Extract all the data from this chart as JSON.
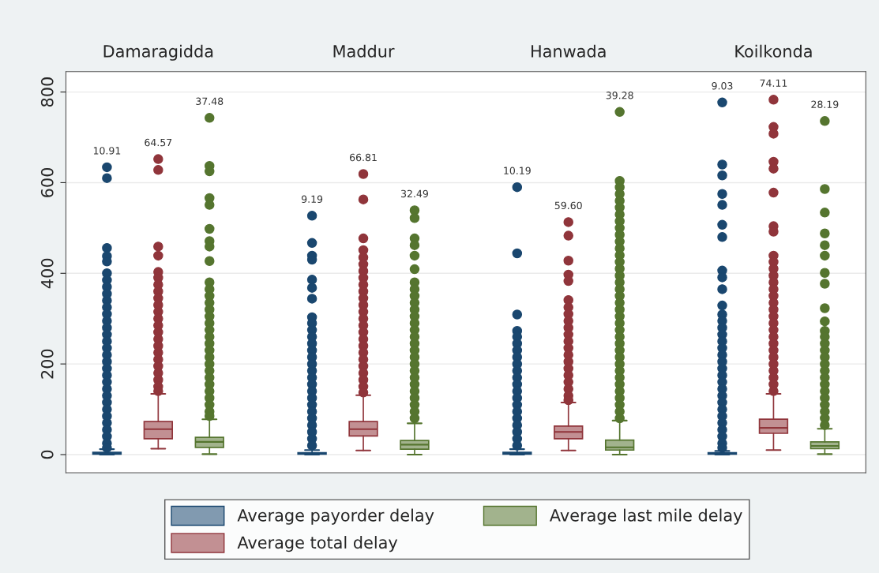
{
  "chart_data": {
    "type": "box",
    "categories": [
      "Damaragidda",
      "Maddur",
      "Hanwada",
      "Koilkonda"
    ],
    "ylim": [
      -40,
      845
    ],
    "yticks": [
      0,
      200,
      400,
      600,
      800
    ],
    "grid": "y",
    "legend": "bottom",
    "annotations": [
      "10.91",
      "64.57",
      "37.48",
      "9.19",
      "66.81",
      "32.49",
      "10.19",
      "59.60",
      "39.28",
      "9.03",
      "74.11",
      "28.19"
    ],
    "series": [
      {
        "name": "Average payorder delay",
        "color": "#1a476f",
        "boxes": [
          {
            "low": 0,
            "q1": 1,
            "median": 2,
            "q3": 5,
            "high": 12,
            "outliers": [
              634,
              610,
              456,
              438,
              426,
              400,
              385,
              370,
              355,
              340,
              325,
              310,
              295,
              280,
              265,
              250,
              235,
              220,
              205,
              190,
              175,
              160,
              145,
              130,
              115,
              100,
              85,
              70,
              55,
              40,
              25,
              15
            ]
          },
          {
            "low": 0,
            "q1": 1,
            "median": 2,
            "q3": 4,
            "high": 10,
            "outliers": [
              527,
              467,
              439,
              430,
              386,
              368,
              344,
              303,
              290,
              275,
              260,
              245,
              230,
              215,
              200,
              185,
              170,
              155,
              140,
              125,
              110,
              95,
              80,
              65,
              50,
              35,
              20
            ]
          },
          {
            "low": 0,
            "q1": 1,
            "median": 2,
            "q3": 5,
            "high": 12,
            "outliers": [
              590,
              444,
              309,
              273,
              260,
              245,
              230,
              215,
              200,
              185,
              170,
              155,
              140,
              125,
              110,
              95,
              80,
              65,
              50,
              35,
              20
            ]
          },
          {
            "low": 0,
            "q1": 1,
            "median": 2,
            "q3": 4,
            "high": 8,
            "outliers": [
              777,
              640,
              616,
              575,
              551,
              507,
              480,
              406,
              391,
              365,
              329,
              309,
              295,
              280,
              265,
              250,
              235,
              220,
              205,
              190,
              175,
              160,
              145,
              130,
              115,
              100,
              85,
              70,
              55,
              40,
              25,
              15
            ]
          }
        ]
      },
      {
        "name": "Average total delay",
        "color": "#90353b",
        "boxes": [
          {
            "low": 13,
            "q1": 35,
            "median": 56,
            "q3": 73,
            "high": 134,
            "outliers": [
              652,
              628,
              459,
              439,
              403,
              390,
              375,
              360,
              345,
              330,
              315,
              300,
              285,
              270,
              255,
              240,
              225,
              210,
              195,
              180,
              165,
              150,
              140
            ]
          },
          {
            "low": 9,
            "q1": 41,
            "median": 56,
            "q3": 73,
            "high": 131,
            "outliers": [
              619,
              563,
              477,
              451,
              435,
              420,
              405,
              390,
              375,
              360,
              345,
              330,
              315,
              300,
              285,
              270,
              255,
              240,
              225,
              210,
              195,
              180,
              165,
              150,
              137
            ]
          },
          {
            "low": 9,
            "q1": 35,
            "median": 50,
            "q3": 63,
            "high": 115,
            "outliers": [
              513,
              483,
              428,
              397,
              383,
              341,
              325,
              310,
              295,
              280,
              265,
              250,
              235,
              220,
              205,
              190,
              175,
              160,
              145,
              130,
              120
            ]
          },
          {
            "low": 10,
            "q1": 47,
            "median": 59,
            "q3": 78,
            "high": 134,
            "outliers": [
              783,
              723,
              708,
              646,
              631,
              578,
              504,
              492,
              439,
              425,
              410,
              395,
              380,
              365,
              350,
              335,
              320,
              305,
              290,
              275,
              260,
              245,
              230,
              215,
              200,
              185,
              170,
              155,
              140
            ]
          }
        ]
      },
      {
        "name": "Average last mile delay",
        "color": "#55752f",
        "boxes": [
          {
            "low": 1,
            "q1": 16,
            "median": 28,
            "q3": 38,
            "high": 78,
            "outliers": [
              743,
              637,
              625,
              566,
              551,
              498,
              471,
              459,
              427,
              380,
              365,
              350,
              335,
              320,
              305,
              290,
              275,
              260,
              245,
              230,
              215,
              200,
              185,
              170,
              155,
              140,
              125,
              110,
              95,
              85
            ]
          },
          {
            "low": 0,
            "q1": 12,
            "median": 22,
            "q3": 31,
            "high": 69,
            "outliers": [
              539,
              522,
              477,
              462,
              439,
              409,
              380,
              365,
              350,
              335,
              320,
              305,
              290,
              275,
              260,
              245,
              230,
              215,
              200,
              185,
              170,
              155,
              140,
              125,
              110,
              95,
              80
            ]
          },
          {
            "low": 0,
            "q1": 10,
            "median": 16,
            "q3": 32,
            "high": 75,
            "outliers": [
              756,
              604,
              590,
              575,
              560,
              545,
              530,
              515,
              500,
              485,
              470,
              455,
              440,
              425,
              410,
              395,
              380,
              365,
              350,
              335,
              320,
              305,
              290,
              275,
              260,
              245,
              230,
              215,
              200,
              185,
              170,
              155,
              140,
              125,
              110,
              95,
              80
            ]
          },
          {
            "low": 1,
            "q1": 13,
            "median": 19,
            "q3": 28,
            "high": 57,
            "outliers": [
              736,
              586,
              534,
              488,
              462,
              439,
              401,
              377,
              323,
              294,
              273,
              260,
              245,
              230,
              215,
              200,
              185,
              170,
              155,
              140,
              125,
              110,
              95,
              80,
              65
            ]
          }
        ]
      }
    ]
  }
}
